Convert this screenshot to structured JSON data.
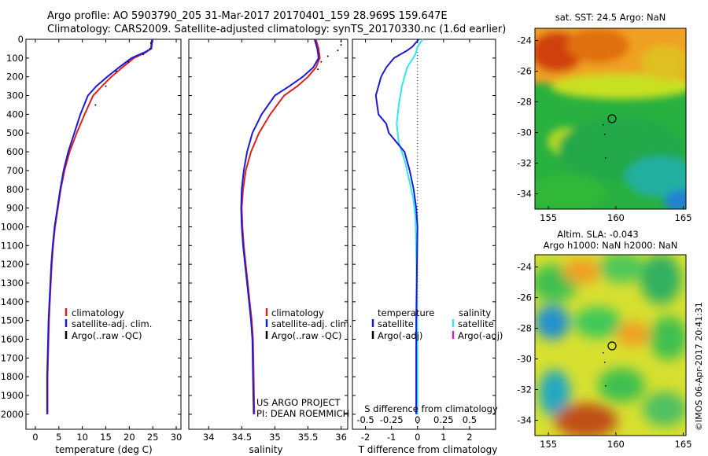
{
  "header": {
    "line1": "Argo profile: AO 5903790_205 31-Mar-2017 20170401_159 28.969S 159.647E",
    "line2": "Climatology: CARS2009. Satellite-adjusted climatology: synTS_20170330.nc (1.6d earlier)"
  },
  "colors": {
    "climatology": "#e02020",
    "satellite": "#1a1ad8",
    "argo": "#000000",
    "satellite_salinity": "#30e8e8",
    "argo_adj_salinity": "#d020d0"
  },
  "credit": {
    "project": "US ARGO PROJECT",
    "pi": "PI: DEAN ROEMMICH"
  },
  "stamp": "©IMOS 06-Apr-2017 20:41:31",
  "panels": {
    "temperature": {
      "xlabel": "temperature (deg C)",
      "legend": [
        "climatology",
        "satellite-adj. clim.",
        "Argo(..raw -QC)"
      ]
    },
    "salinity": {
      "xlabel": "salinity",
      "legend": [
        "climatology",
        "satellite-adj. clim.",
        "Argo(..raw -QC)"
      ]
    },
    "difference": {
      "top_label": "S difference from climatology",
      "xlabel": "T difference from climatology",
      "legend_temp_title": "temperature",
      "legend_sal_title": "salinity",
      "legend_temp": [
        "satellite",
        "Argo(-adj)"
      ],
      "legend_sal": [
        "satellite",
        "Argo(-adj)"
      ]
    },
    "sst_map": {
      "title": "sat. SST: 24.5  Argo: NaN"
    },
    "sla_map": {
      "title1": "Altim. SLA: -0.043",
      "title2": "Argo h1000: NaN h2000: NaN"
    }
  },
  "chart_data": [
    {
      "type": "line",
      "name": "temperature profile",
      "xlabel": "temperature (deg C)",
      "ylabel": "",
      "xlim": [
        -2,
        31
      ],
      "ylim": [
        2080,
        0
      ],
      "xticks": [
        0,
        5,
        10,
        15,
        20,
        25,
        30
      ],
      "yticks": [
        0,
        100,
        200,
        300,
        400,
        500,
        600,
        700,
        800,
        900,
        1000,
        1100,
        1200,
        1300,
        1400,
        1500,
        1600,
        1700,
        1800,
        1900,
        2000
      ],
      "series": [
        {
          "name": "climatology",
          "x": [
            24.8,
            24.6,
            23.5,
            21.0,
            18.5,
            16.2,
            14.2,
            12.3,
            10.5,
            8.8,
            7.3,
            6.2,
            5.4,
            4.8,
            4.2,
            3.8,
            3.5,
            3.3,
            3.1,
            2.9,
            2.8,
            2.7,
            2.6,
            2.6
          ],
          "y": [
            0,
            50,
            70,
            100,
            150,
            200,
            250,
            300,
            400,
            500,
            600,
            700,
            800,
            900,
            1000,
            1100,
            1200,
            1300,
            1400,
            1500,
            1600,
            1700,
            1800,
            2000
          ]
        },
        {
          "name": "satellite-adj. clim.",
          "x": [
            24.9,
            24.7,
            23.2,
            20.5,
            17.8,
            15.3,
            13.0,
            11.2,
            9.6,
            8.3,
            7.0,
            6.0,
            5.3,
            4.7,
            4.1,
            3.7,
            3.4,
            3.2,
            3.0,
            2.8,
            2.7,
            2.6,
            2.5,
            2.5
          ],
          "y": [
            0,
            50,
            70,
            100,
            150,
            200,
            250,
            300,
            400,
            500,
            600,
            700,
            800,
            900,
            1000,
            1100,
            1200,
            1300,
            1400,
            1500,
            1600,
            1700,
            1800,
            2000
          ]
        },
        {
          "name": "Argo(..raw -QC)",
          "x": [
            24.6,
            24.4,
            23.0,
            19.8,
            17.2,
            15.0,
            12.8
          ],
          "y": [
            20,
            50,
            80,
            120,
            170,
            250,
            350
          ]
        }
      ]
    },
    {
      "type": "line",
      "name": "salinity profile",
      "xlabel": "salinity",
      "ylabel": "",
      "xlim": [
        33.7,
        36.1
      ],
      "ylim": [
        2080,
        0
      ],
      "xticks": [
        34,
        34.5,
        35,
        35.5,
        36
      ],
      "series": [
        {
          "name": "climatology",
          "x": [
            35.62,
            35.66,
            35.68,
            35.62,
            35.5,
            35.34,
            35.14,
            34.93,
            34.76,
            34.64,
            34.56,
            34.52,
            34.5,
            34.51,
            34.53,
            34.56,
            34.59,
            34.62,
            34.65,
            34.67,
            34.68,
            34.69
          ],
          "y": [
            0,
            50,
            100,
            150,
            200,
            250,
            300,
            400,
            500,
            600,
            700,
            800,
            900,
            1000,
            1100,
            1200,
            1300,
            1400,
            1500,
            1600,
            1800,
            2000
          ]
        },
        {
          "name": "satellite-adj. clim.",
          "x": [
            35.6,
            35.64,
            35.66,
            35.58,
            35.42,
            35.22,
            35.0,
            34.8,
            34.66,
            34.58,
            34.53,
            34.5,
            34.49,
            34.5,
            34.52,
            34.55,
            34.58,
            34.61,
            34.64,
            34.66,
            34.67,
            34.68
          ],
          "y": [
            0,
            50,
            100,
            150,
            200,
            250,
            300,
            400,
            500,
            600,
            700,
            800,
            900,
            1000,
            1100,
            1200,
            1300,
            1400,
            1500,
            1600,
            1800,
            2000
          ]
        },
        {
          "name": "Argo(..raw -QC)",
          "x": [
            36.0,
            36.0,
            35.95,
            35.8,
            35.7,
            35.65
          ],
          "y": [
            10,
            30,
            60,
            90,
            120,
            160
          ]
        }
      ]
    },
    {
      "type": "line",
      "name": "difference from climatology",
      "xlabel": "T difference from climatology",
      "top_label": "S difference from climatology",
      "xlim": [
        -2.5,
        3.0
      ],
      "ylim": [
        2080,
        0
      ],
      "xticks_T": [
        -2,
        -1,
        0,
        1,
        2
      ],
      "xticks_S": [
        -0.5,
        -0.25,
        0,
        0.25,
        0.5
      ],
      "series": [
        {
          "name": "temperature satellite",
          "x": [
            0.05,
            -0.2,
            -0.4,
            -0.9,
            -1.2,
            -1.4,
            -1.6,
            -1.5,
            -1.2,
            -1.1,
            -0.8,
            -0.5,
            -0.3,
            -0.15,
            -0.05,
            0.0,
            -0.05,
            -0.05
          ],
          "y": [
            0,
            40,
            60,
            100,
            150,
            200,
            300,
            400,
            450,
            500,
            550,
            600,
            700,
            800,
            900,
            1000,
            1500,
            2000
          ]
        },
        {
          "name": "salinity satellite",
          "x": [
            0.05,
            0.0,
            -0.02,
            -0.1,
            -0.15,
            -0.18,
            -0.2,
            -0.18,
            -0.12,
            -0.08,
            -0.04,
            -0.02,
            -0.01,
            0.0,
            0.0
          ],
          "y": [
            0,
            40,
            80,
            150,
            250,
            350,
            450,
            550,
            650,
            750,
            850,
            950,
            1200,
            1600,
            2000
          ]
        }
      ]
    },
    {
      "type": "heatmap",
      "name": "sat. SST map",
      "title": "sat. SST: 24.5  Argo: NaN",
      "xlim": [
        154,
        165.2
      ],
      "ylim": [
        -35,
        -23.2
      ],
      "xticks": [
        155,
        160,
        165
      ],
      "yticks": [
        -24,
        -26,
        -28,
        -30,
        -32,
        -34
      ],
      "marker": {
        "lon": 159.647,
        "lat": -28.969
      }
    },
    {
      "type": "heatmap",
      "name": "Altim. SLA map",
      "title": "Altim. SLA: -0.043",
      "subtitle": "Argo h1000: NaN h2000: NaN",
      "xlim": [
        154,
        165.2
      ],
      "ylim": [
        -35,
        -23.2
      ],
      "xticks": [
        155,
        160,
        165
      ],
      "yticks": [
        -24,
        -26,
        -28,
        -30,
        -32,
        -34
      ],
      "marker": {
        "lon": 159.647,
        "lat": -28.969
      }
    }
  ]
}
